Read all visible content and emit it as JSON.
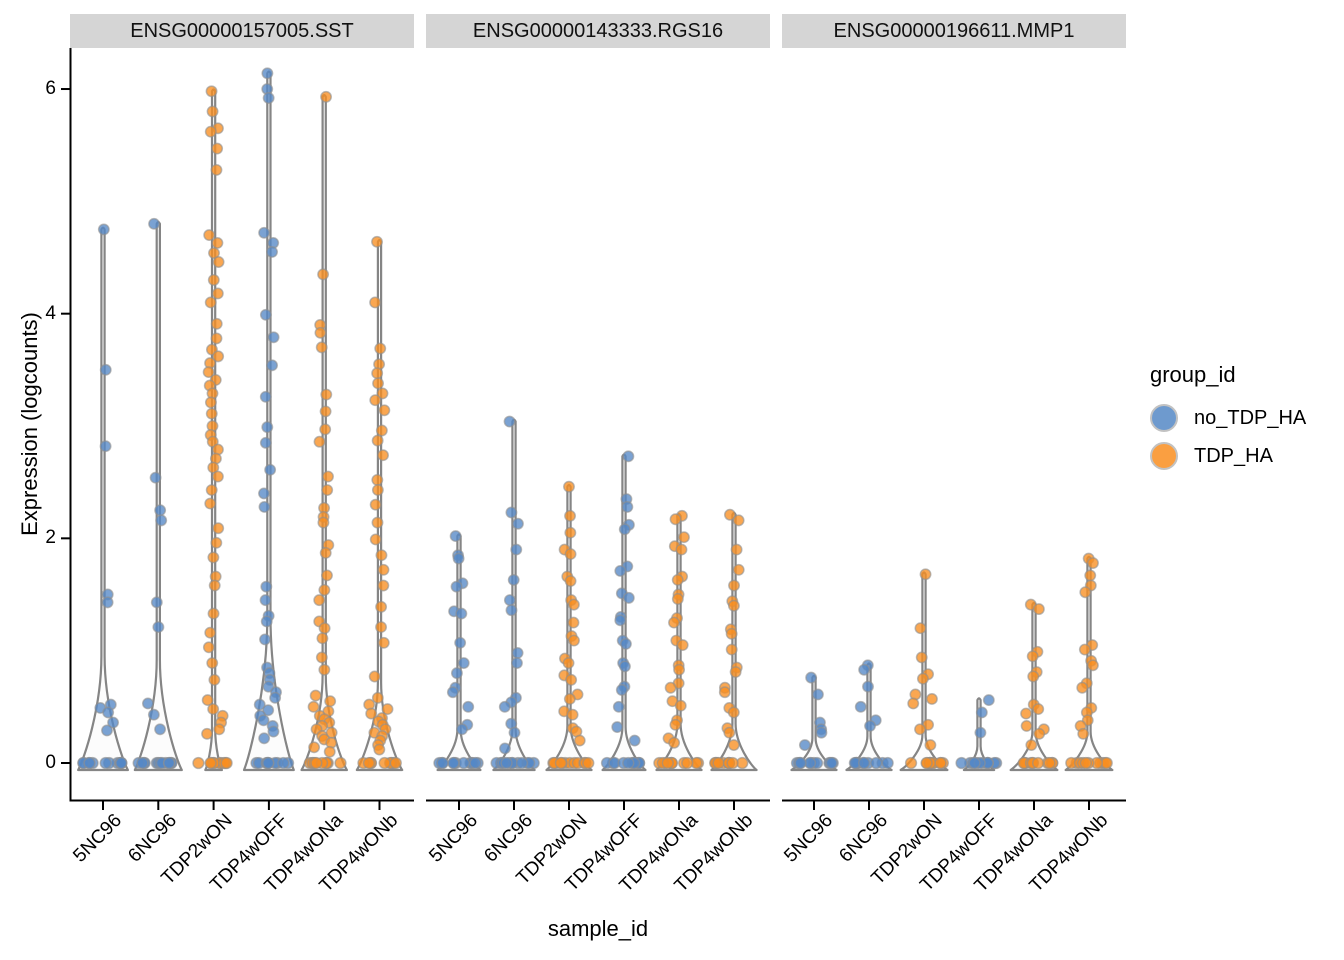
{
  "chart_data": {
    "type": "violin",
    "title": "",
    "xlabel": "sample_id",
    "ylabel": "Expression (logcounts)",
    "y_ticks": [
      0,
      2,
      4,
      6
    ],
    "ylim": [
      -0.35,
      6.35
    ],
    "grid": false,
    "legend_position": "right",
    "categories": [
      "5NC96",
      "6NC96",
      "TDP2wON",
      "TDP4wOFF",
      "TDP4wONa",
      "TDP4wONb"
    ],
    "legend": {
      "title": "group_id",
      "items": [
        {
          "label": "no_TDP_HA",
          "color": "#5588C6"
        },
        {
          "label": "TDP_HA",
          "color": "#F98E20"
        }
      ]
    },
    "facets": [
      {
        "label": "ENSG00000157005.SST",
        "samples": [
          {
            "sample": "5NC96",
            "group": "no_TDP_HA",
            "violin": {
              "half_width": 0.9,
              "bell_height": 0.95
            },
            "points": [
              4.75,
              3.5,
              2.82,
              1.5,
              1.43,
              0.52,
              0.49,
              0.45,
              0.36,
              0.29
            ],
            "zeros": 12
          },
          {
            "sample": "6NC96",
            "group": "no_TDP_HA",
            "violin": {
              "half_width": 0.85,
              "bell_height": 0.92
            },
            "points": [
              4.8,
              2.54,
              2.25,
              2.16,
              1.43,
              1.21,
              0.53,
              0.43,
              0.3
            ],
            "zeros": 13
          },
          {
            "sample": "TDP2wON",
            "group": "TDP_HA",
            "violin": {
              "half_width": 0.3,
              "bell_height": 0.3
            },
            "points": [
              5.98,
              5.8,
              5.65,
              5.62,
              5.47,
              5.28,
              4.7,
              4.63,
              4.54,
              4.46,
              4.3,
              4.18,
              4.1,
              3.91,
              3.78,
              3.68,
              3.62,
              3.56,
              3.48,
              3.41,
              3.36,
              3.29,
              3.21,
              3.11,
              3.0,
              2.92,
              2.86,
              2.79,
              2.71,
              2.63,
              2.55,
              2.43,
              2.31,
              2.09,
              1.96,
              1.83,
              1.66,
              1.58,
              1.33,
              1.16,
              1.03,
              0.89,
              0.74,
              0.56,
              0.48,
              0.42,
              0.36,
              0.3,
              0.26
            ],
            "zeros": 10
          },
          {
            "sample": "TDP4wOFF",
            "group": "no_TDP_HA",
            "violin": {
              "half_width": 0.9,
              "bell_height": 1.3
            },
            "points": [
              6.14,
              6.0,
              5.92,
              4.72,
              4.63,
              4.55,
              3.99,
              3.79,
              3.54,
              3.26,
              2.99,
              2.85,
              2.61,
              2.4,
              2.28,
              1.57,
              1.45,
              1.31,
              1.26,
              1.1,
              0.85,
              0.8,
              0.74,
              0.68,
              0.63,
              0.58,
              0.52,
              0.47,
              0.42,
              0.38,
              0.33,
              0.28,
              0.22
            ],
            "zeros": 10
          },
          {
            "sample": "TDP4wONa",
            "group": "TDP_HA",
            "violin": {
              "half_width": 0.82,
              "bell_height": 0.78
            },
            "points": [
              5.93,
              4.35,
              3.9,
              3.83,
              3.7,
              3.28,
              3.13,
              2.97,
              2.86,
              2.55,
              2.43,
              2.27,
              2.19,
              2.14,
              1.94,
              1.87,
              1.67,
              1.54,
              1.45,
              1.26,
              1.2,
              1.11,
              0.94,
              0.83,
              0.6,
              0.55,
              0.5,
              0.46,
              0.42,
              0.39,
              0.36,
              0.33,
              0.3,
              0.27,
              0.24,
              0.21,
              0.18,
              0.14,
              0.1
            ],
            "zeros": 10
          },
          {
            "sample": "TDP4wONb",
            "group": "TDP_HA",
            "violin": {
              "half_width": 0.82,
              "bell_height": 0.72
            },
            "points": [
              4.64,
              4.1,
              3.69,
              3.55,
              3.47,
              3.38,
              3.29,
              3.23,
              3.14,
              2.96,
              2.87,
              2.74,
              2.52,
              2.43,
              2.3,
              2.14,
              1.99,
              1.85,
              1.72,
              1.58,
              1.39,
              1.21,
              1.07,
              0.77,
              0.58,
              0.52,
              0.48,
              0.44,
              0.4,
              0.37,
              0.34,
              0.3,
              0.27,
              0.24,
              0.2,
              0.16,
              0.12
            ],
            "zeros": 10
          }
        ]
      },
      {
        "label": "ENSG00000143333.RGS16",
        "samples": [
          {
            "sample": "5NC96",
            "group": "no_TDP_HA",
            "violin": {
              "half_width": 0.78,
              "bell_height": 0.3
            },
            "points": [
              2.02,
              1.85,
              1.82,
              1.6,
              1.57,
              1.35,
              1.33,
              1.07,
              0.89,
              0.8,
              0.67,
              0.63,
              0.5,
              0.34,
              0.3
            ],
            "zeros": 12
          },
          {
            "sample": "6NC96",
            "group": "no_TDP_HA",
            "violin": {
              "half_width": 0.75,
              "bell_height": 0.3
            },
            "points": [
              3.04,
              2.23,
              2.13,
              1.9,
              1.63,
              1.45,
              1.36,
              0.98,
              0.89,
              0.58,
              0.54,
              0.5,
              0.35,
              0.27,
              0.13
            ],
            "zeros": 13
          },
          {
            "sample": "TDP2wON",
            "group": "TDP_HA",
            "violin": {
              "half_width": 0.82,
              "bell_height": 0.33
            },
            "points": [
              2.46,
              2.2,
              2.05,
              1.9,
              1.86,
              1.66,
              1.62,
              1.45,
              1.41,
              1.25,
              1.13,
              1.09,
              0.93,
              0.89,
              0.78,
              0.74,
              0.61,
              0.57,
              0.46,
              0.43,
              0.31,
              0.28,
              0.2
            ],
            "zeros": 12
          },
          {
            "sample": "TDP4wOFF",
            "group": "no_TDP_HA",
            "violin": {
              "half_width": 0.78,
              "bell_height": 0.32
            },
            "points": [
              2.73,
              2.35,
              2.28,
              2.12,
              2.08,
              1.75,
              1.71,
              1.51,
              1.47,
              1.3,
              1.27,
              1.09,
              1.06,
              0.89,
              0.86,
              0.68,
              0.65,
              0.5,
              0.32,
              0.2
            ],
            "zeros": 12
          },
          {
            "sample": "TDP4wONa",
            "group": "TDP_HA",
            "violin": {
              "half_width": 0.82,
              "bell_height": 0.35
            },
            "points": [
              2.2,
              2.17,
              2.01,
              1.93,
              1.9,
              1.66,
              1.63,
              1.5,
              1.46,
              1.29,
              1.25,
              1.09,
              1.05,
              0.87,
              0.83,
              0.71,
              0.67,
              0.55,
              0.51,
              0.38,
              0.34,
              0.22,
              0.18
            ],
            "zeros": 11
          },
          {
            "sample": "TDP4wONb",
            "group": "TDP_HA",
            "violin": {
              "half_width": 0.82,
              "bell_height": 0.35
            },
            "points": [
              2.21,
              2.16,
              1.9,
              1.72,
              1.58,
              1.44,
              1.4,
              1.19,
              1.15,
              1.01,
              0.85,
              0.81,
              0.67,
              0.63,
              0.49,
              0.45,
              0.31,
              0.27,
              0.16
            ],
            "zeros": 11
          }
        ]
      },
      {
        "label": "ENSG00000196611.MMP1",
        "samples": [
          {
            "sample": "5NC96",
            "group": "no_TDP_HA",
            "violin": {
              "half_width": 0.82,
              "bell_height": 0.22
            },
            "points": [
              0.76,
              0.61,
              0.36,
              0.3,
              0.27,
              0.16
            ],
            "zeros": 12
          },
          {
            "sample": "6NC96",
            "group": "no_TDP_HA",
            "violin": {
              "half_width": 0.82,
              "bell_height": 0.24
            },
            "points": [
              0.87,
              0.83,
              0.68,
              0.5,
              0.38,
              0.33
            ],
            "zeros": 12
          },
          {
            "sample": "TDP2wON",
            "group": "TDP_HA",
            "violin": {
              "half_width": 0.85,
              "bell_height": 0.25
            },
            "points": [
              1.68,
              1.2,
              0.94,
              0.79,
              0.75,
              0.61,
              0.57,
              0.53,
              0.34,
              0.3,
              0.16
            ],
            "zeros": 12
          },
          {
            "sample": "TDP4wOFF",
            "group": "no_TDP_HA",
            "violin": {
              "half_width": 0.55,
              "bell_height": 0.15
            },
            "points": [
              0.56,
              0.45,
              0.27
            ],
            "zeros": 12
          },
          {
            "sample": "TDP4wONa",
            "group": "TDP_HA",
            "violin": {
              "half_width": 0.85,
              "bell_height": 0.28
            },
            "points": [
              1.41,
              1.37,
              0.99,
              0.95,
              0.81,
              0.77,
              0.52,
              0.48,
              0.44,
              0.33,
              0.3,
              0.26,
              0.16
            ],
            "zeros": 11
          },
          {
            "sample": "TDP4wONb",
            "group": "TDP_HA",
            "violin": {
              "half_width": 0.85,
              "bell_height": 0.28
            },
            "points": [
              1.82,
              1.78,
              1.67,
              1.58,
              1.52,
              1.05,
              1.01,
              0.91,
              0.87,
              0.71,
              0.67,
              0.49,
              0.45,
              0.38,
              0.33,
              0.26
            ],
            "zeros": 11
          }
        ]
      }
    ]
  },
  "style": {
    "colors": {
      "no_TDP_HA": "#5588C6",
      "TDP_HA": "#F98E20",
      "point_stroke": "#8F8F8F",
      "violin_fill": "#FBFBFB",
      "violin_stroke": "#858585",
      "strip_bg": "#D5D5D5",
      "axis": "#000000"
    }
  }
}
